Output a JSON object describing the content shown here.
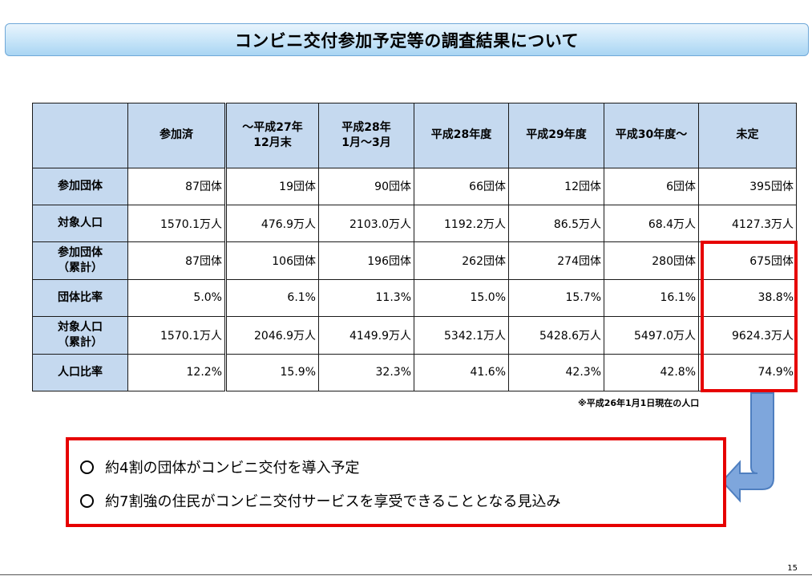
{
  "title": "コンビニ交付参加予定等の調査結果について",
  "table": {
    "headers": [
      "参加済",
      "～平成27年\n12月末",
      "平成28年\n1月～3月",
      "平成28年度",
      "平成29年度",
      "平成30年度～",
      "未定"
    ],
    "rows": [
      {
        "label": "参加団体",
        "cells": [
          "87団体",
          "19団体",
          "90団体",
          "66団体",
          "12団体",
          "6団体",
          "395団体"
        ]
      },
      {
        "label": "対象人口",
        "cells": [
          "1570.1万人",
          "476.9万人",
          "2103.0万人",
          "1192.2万人",
          "86.5万人",
          "68.4万人",
          "4127.3万人"
        ]
      },
      {
        "label": "参加団体\n（累計）",
        "cells": [
          "87団体",
          "106団体",
          "196団体",
          "262団体",
          "274団体",
          "280団体",
          "675団体"
        ]
      },
      {
        "label": "団体比率",
        "cells": [
          "5.0%",
          "6.1%",
          "11.3%",
          "15.0%",
          "15.7%",
          "16.1%",
          "38.8%"
        ]
      },
      {
        "label": "対象人口\n（累計）",
        "cells": [
          "1570.1万人",
          "2046.9万人",
          "4149.9万人",
          "5342.1万人",
          "5428.6万人",
          "5497.0万人",
          "9624.3万人"
        ]
      },
      {
        "label": "人口比率",
        "cells": [
          "12.2%",
          "15.9%",
          "32.3%",
          "41.6%",
          "42.3%",
          "42.8%",
          "74.9%"
        ]
      }
    ]
  },
  "note": "※平成26年1月1日現在の人口",
  "summary": [
    "約4割の団体がコンビニ交付を導入予定",
    "約7割強の住民がコンビニ交付サービスを享受できることとなる見込み"
  ],
  "page_number": "15",
  "colors": {
    "header_bg": "#c5d9ef",
    "highlight": "#e60000",
    "arrow": "#7ea6dc"
  }
}
